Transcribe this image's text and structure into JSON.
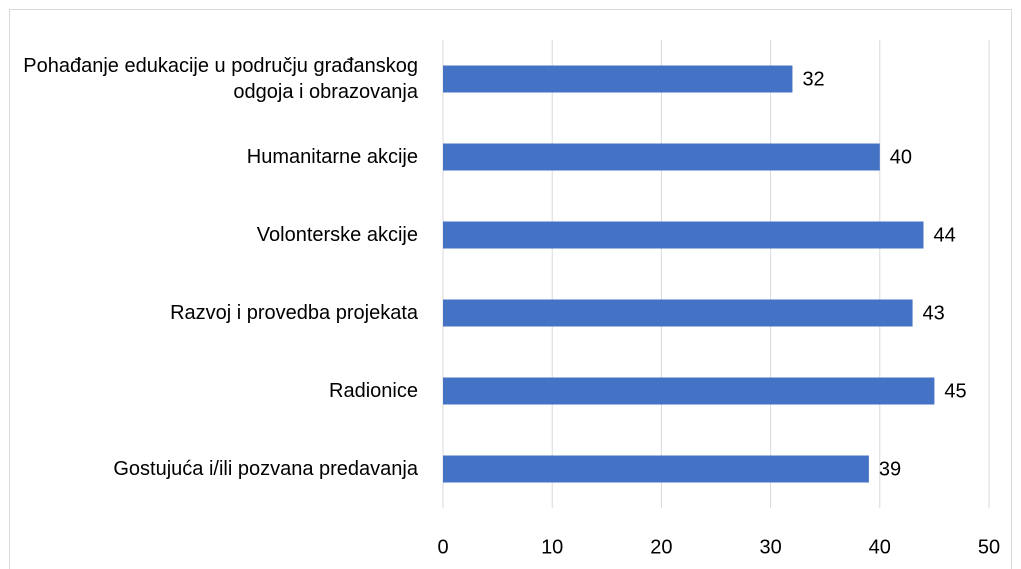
{
  "chart_data": {
    "type": "bar",
    "orientation": "horizontal",
    "categories": [
      "Pohađanje edukacije u području građanskog odgoja i obrazovanja",
      "Humanitarne akcije",
      "Volonterske akcije",
      "Razvoj i provedba projekata",
      "Radionice",
      "Gostujuća i/ili pozvana predavanja"
    ],
    "values": [
      32,
      40,
      44,
      43,
      45,
      39
    ],
    "color": "#4472c4",
    "xlim": [
      0,
      50
    ],
    "xticks": [
      0,
      10,
      20,
      30,
      40,
      50
    ],
    "grid": true
  }
}
